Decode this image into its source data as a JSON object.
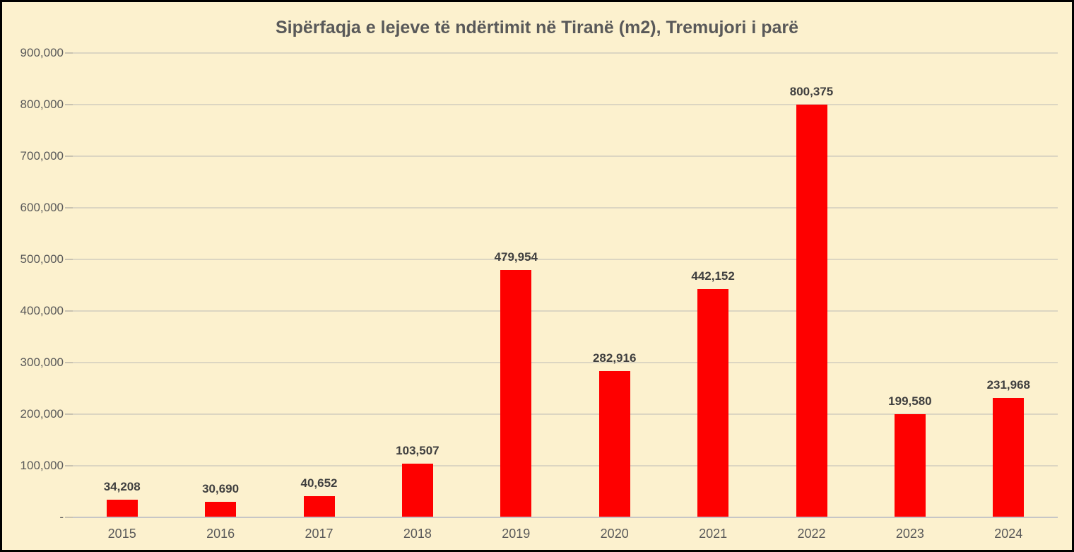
{
  "frame": {
    "border_color": "#000000",
    "background_color": "#FCF1CE"
  },
  "chart_data": {
    "type": "bar",
    "title": "Sipërfaqja e lejeve të ndërtimit në Tiranë (m2), Tremujori i parë",
    "categories": [
      "2015",
      "2016",
      "2017",
      "2018",
      "2019",
      "2020",
      "2021",
      "2022",
      "2023",
      "2024"
    ],
    "values": [
      34208,
      30690,
      40652,
      103507,
      479954,
      282916,
      442152,
      800375,
      199580,
      231968
    ],
    "value_labels": [
      "34,208",
      "30,690",
      "40,652",
      "103,507",
      "479,954",
      "282,916",
      "442,152",
      "800,375",
      "199,580",
      "231,968"
    ],
    "xlabel": "",
    "ylabel": "",
    "ylim": [
      0,
      900000
    ],
    "y_ticks": [
      {
        "value": 0,
        "label": "-"
      },
      {
        "value": 100000,
        "label": "100,000"
      },
      {
        "value": 200000,
        "label": "200,000"
      },
      {
        "value": 300000,
        "label": "300,000"
      },
      {
        "value": 400000,
        "label": "400,000"
      },
      {
        "value": 500000,
        "label": "500,000"
      },
      {
        "value": 600000,
        "label": "600,000"
      },
      {
        "value": 700000,
        "label": "700,000"
      },
      {
        "value": 800000,
        "label": "800,000"
      },
      {
        "value": 900000,
        "label": "900,000"
      }
    ],
    "grid": true,
    "legend": "none",
    "colors": {
      "bar": "#FE0000",
      "title_text": "#595959",
      "axis_text": "#595959",
      "data_label_text": "#3F3F3F",
      "gridline": "#DCD6C2",
      "baseline": "#C6C6C6",
      "tick": "#C9C3B1",
      "background": "#FCF1CE"
    }
  }
}
